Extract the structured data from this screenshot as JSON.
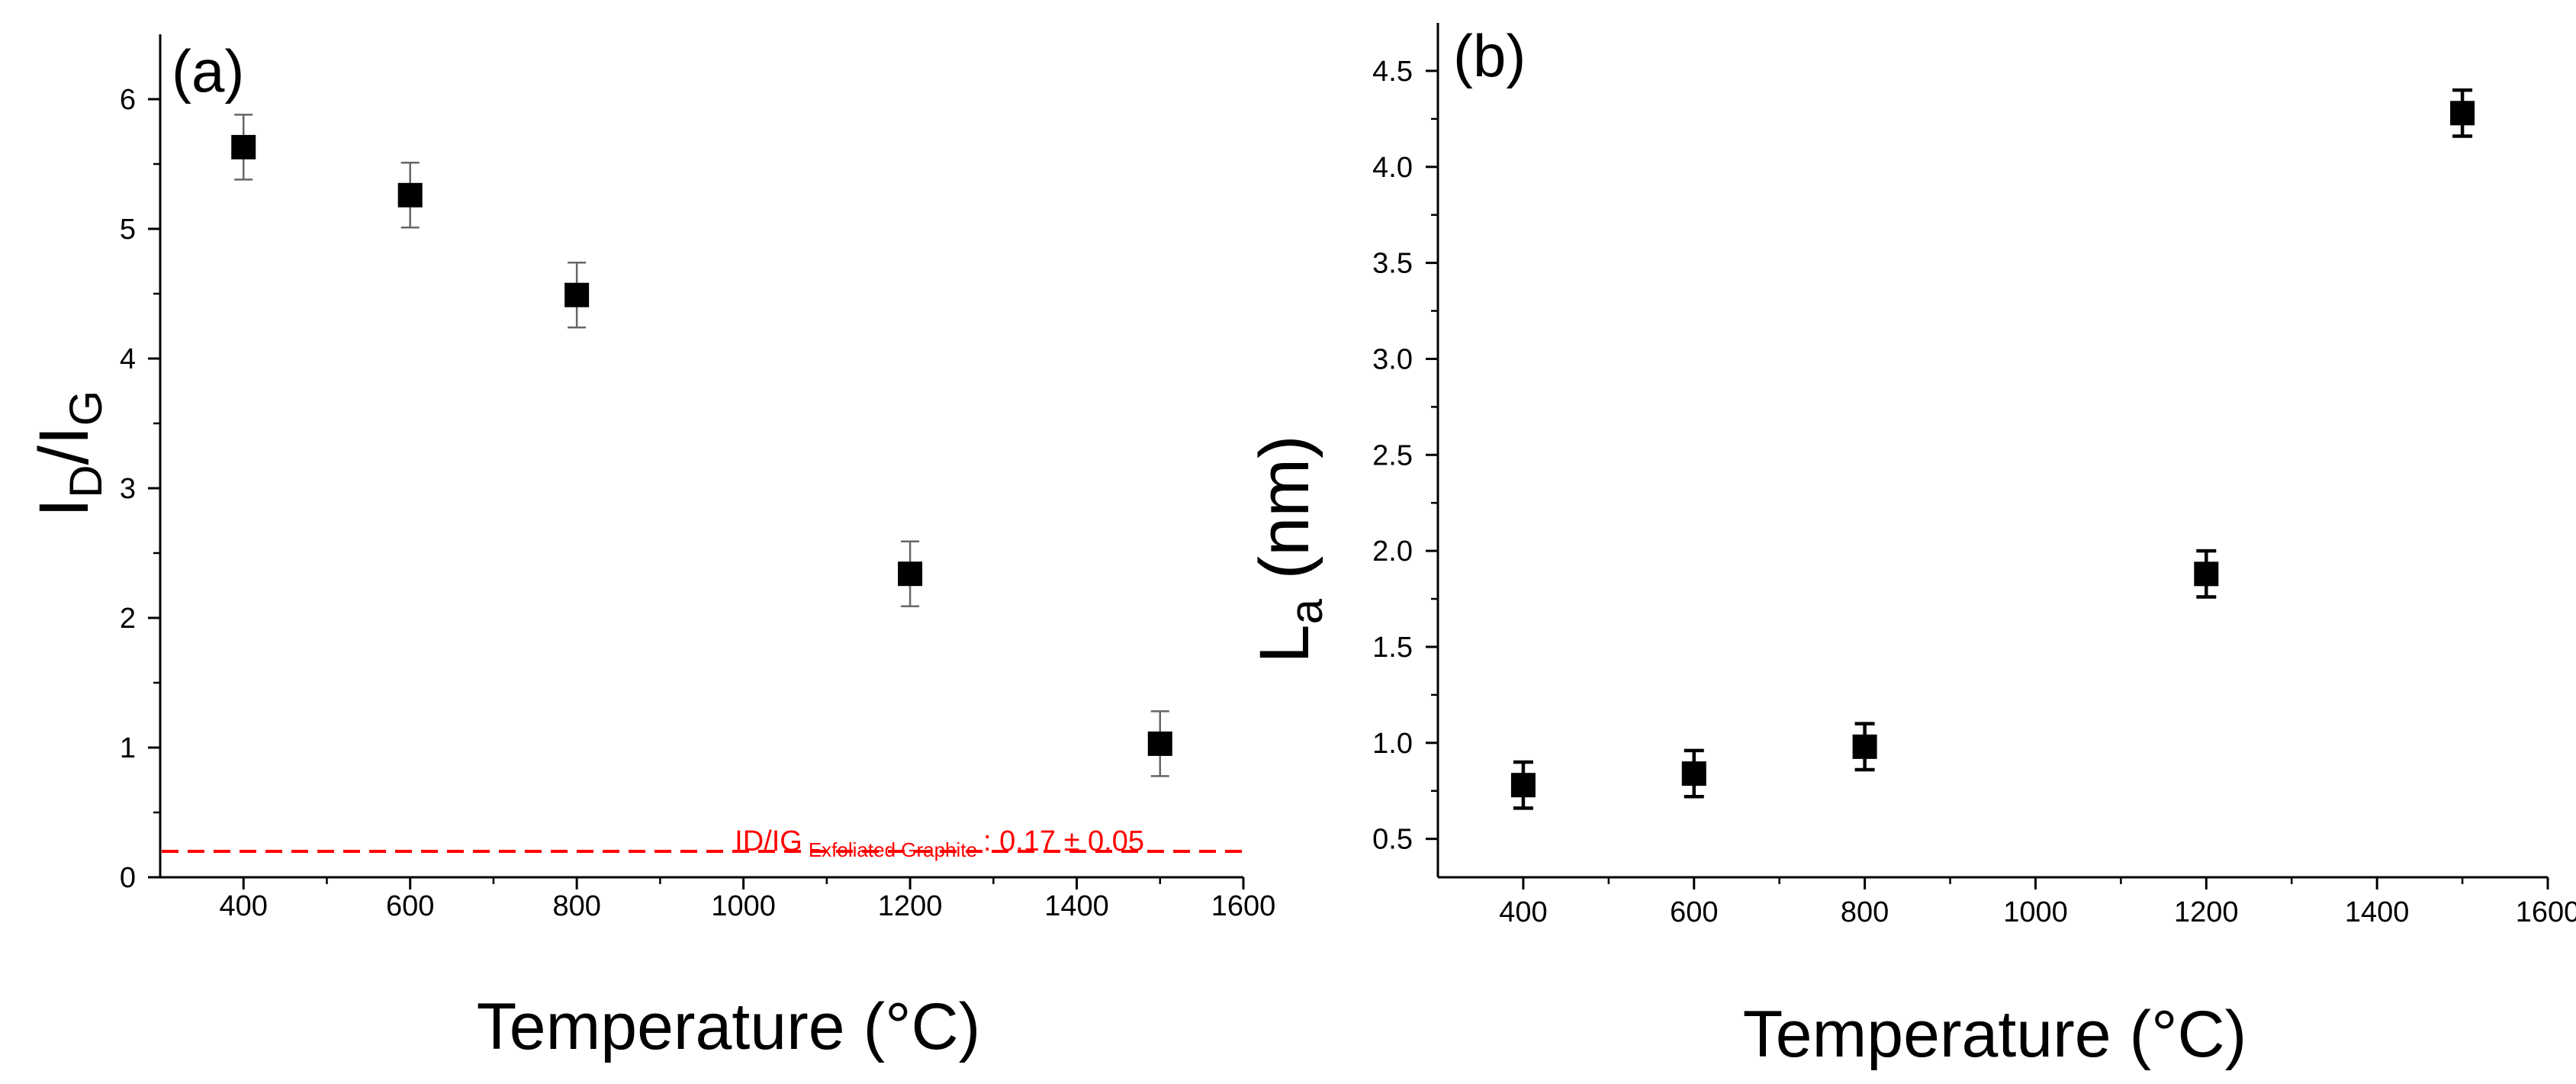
{
  "chart_data": [
    {
      "type": "scatter",
      "panel_label": "(a)",
      "xlabel": "Temperature (°C)",
      "ylabel": {
        "main": "I",
        "sub1": "D",
        "sep": "/I",
        "sub2": "G"
      },
      "xlim": [
        300,
        1600
      ],
      "ylim": [
        0,
        6.5
      ],
      "xticks": [
        400,
        600,
        800,
        1000,
        1200,
        1400,
        1600
      ],
      "yticks": [
        0,
        1,
        2,
        3,
        4,
        5,
        6
      ],
      "x": [
        400,
        600,
        800,
        1200,
        1500
      ],
      "y": [
        5.63,
        5.26,
        4.49,
        2.34,
        1.03
      ],
      "yerr": [
        0.25,
        0.25,
        0.25,
        0.25,
        0.25
      ],
      "reference": {
        "value": 0.2,
        "label_main": "ID/IG",
        "label_sub": "Exfoliated Graphite",
        "label_value": ": 0.17 ± 0.05",
        "color": "#ff0000"
      },
      "marker_color": "#000000"
    },
    {
      "type": "scatter",
      "panel_label": "(b)",
      "xlabel": "Temperature (°C)",
      "ylabel": {
        "main": "L",
        "sub": "a",
        "rest": " (nm)"
      },
      "xlim": [
        300,
        1600
      ],
      "ylim": [
        0.3,
        4.75
      ],
      "xticks": [
        400,
        600,
        800,
        1000,
        1200,
        1400,
        1600
      ],
      "yticks": [
        "0.5",
        "1.0",
        "1.5",
        "2.0",
        "2.5",
        "3.0",
        "3.5",
        "4.0",
        "4.5"
      ],
      "x": [
        400,
        600,
        800,
        1200,
        1500
      ],
      "y": [
        0.78,
        0.84,
        0.98,
        1.88,
        4.28
      ],
      "yerr": [
        0.12,
        0.12,
        0.12,
        0.12,
        0.12
      ],
      "marker_color": "#000000"
    }
  ]
}
